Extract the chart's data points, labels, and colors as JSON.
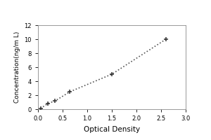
{
  "x_data": [
    0.05,
    0.2,
    0.35,
    0.65,
    1.5,
    2.6
  ],
  "y_data": [
    0.1,
    0.8,
    1.2,
    2.5,
    5.0,
    10.0
  ],
  "xlabel": "Optical Density",
  "ylabel": "Concentration(ng/m L)",
  "xlim": [
    0,
    3
  ],
  "ylim": [
    0,
    12
  ],
  "xticks": [
    0,
    0.5,
    1.0,
    1.5,
    2.0,
    2.5,
    3.0
  ],
  "yticks": [
    0,
    2,
    4,
    6,
    8,
    10,
    12
  ],
  "line_color": "#555555",
  "marker_color": "#333333",
  "marker_size": 5,
  "line_width": 1.2,
  "bg_color": "#ffffff",
  "xlabel_fontsize": 7.5,
  "ylabel_fontsize": 6.5,
  "tick_fontsize": 6
}
